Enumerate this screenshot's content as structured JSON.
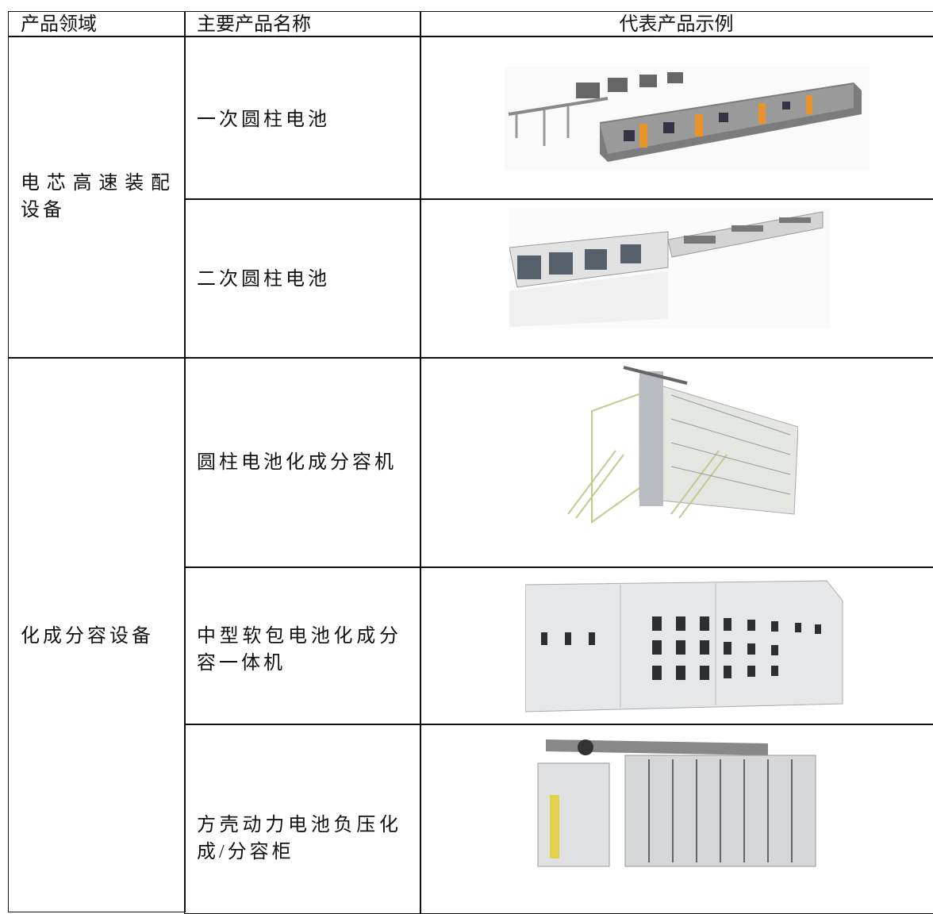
{
  "table": {
    "header": [
      "产品领域",
      "主要产品名称",
      "代表产品示例"
    ],
    "groups": [
      {
        "domain": "电芯高速装配设备",
        "products": [
          "一次圆柱电池",
          "二次圆柱电池"
        ]
      },
      {
        "domain": "化成分容设备",
        "products": [
          "圆柱电池化成分容机",
          "中型软包电池化成分容一体机",
          "方壳动力电池负压化成/分容柜"
        ]
      }
    ]
  }
}
